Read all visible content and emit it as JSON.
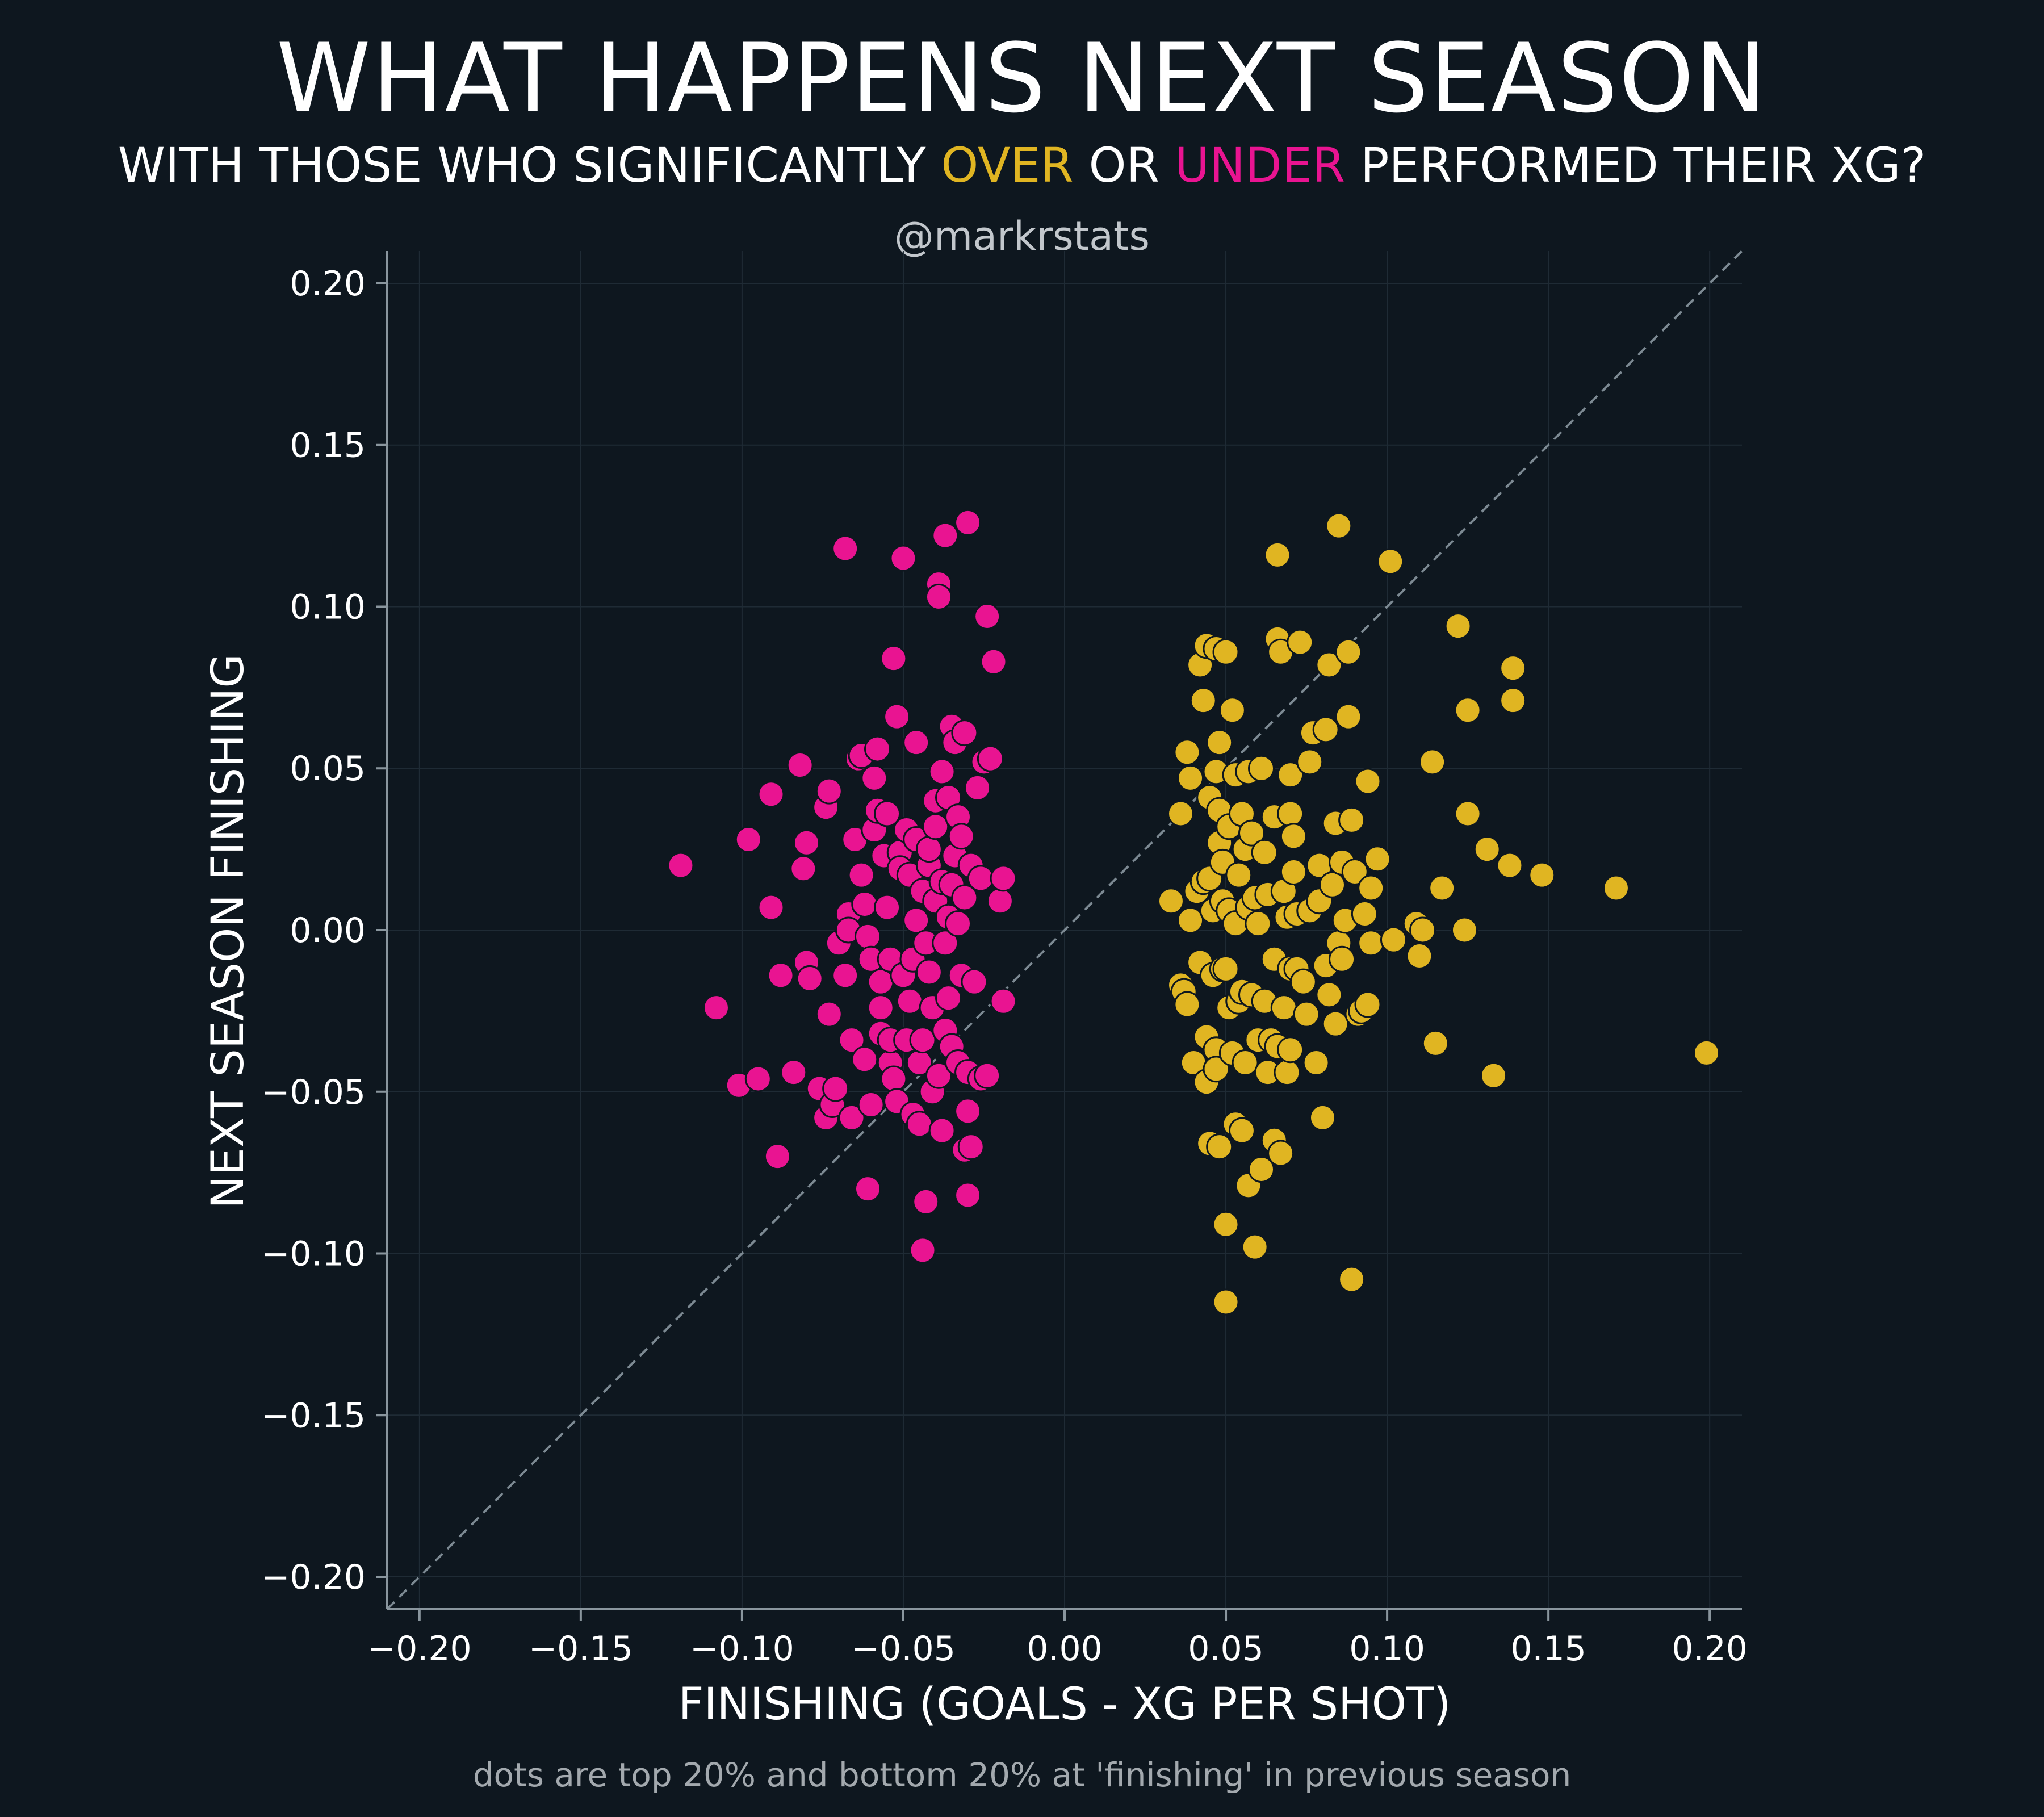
{
  "header": {
    "title": "WHAT HAPPENS NEXT SEASON",
    "subtitle_prefix": "WITH THOSE WHO SIGNIFICANTLY ",
    "subtitle_over": "OVER",
    "subtitle_mid": " OR ",
    "subtitle_under": "UNDER",
    "subtitle_suffix": " PERFORMED THEIR XG?",
    "handle": "@markrstats"
  },
  "footnote": "dots are top 20% and bottom 20% at 'finishing' in previous season",
  "colors": {
    "background": "#0e171f",
    "over": "#e0b522",
    "under": "#e91491",
    "grid": "#1f2b35",
    "axis": "#8a969e",
    "diagonal": "#7d8a93"
  },
  "chart_data": {
    "type": "scatter",
    "title": "WHAT HAPPENS NEXT SEASON",
    "xlabel": "FINISHING (GOALS - XG PER SHOT)",
    "ylabel": "NEXT SEASON FINISHING",
    "xlim": [
      -0.21,
      0.21
    ],
    "ylim": [
      -0.21,
      0.21
    ],
    "xticks": [
      -0.2,
      -0.15,
      -0.1,
      -0.05,
      0.0,
      0.05,
      0.1,
      0.15,
      0.2
    ],
    "yticks": [
      -0.2,
      -0.15,
      -0.1,
      -0.05,
      0.0,
      0.05,
      0.1,
      0.15,
      0.2
    ],
    "xtick_labels": [
      "−0.20",
      "−0.15",
      "−0.10",
      "−0.05",
      "0.00",
      "0.05",
      "0.10",
      "0.15",
      "0.20"
    ],
    "ytick_labels": [
      "−0.20",
      "−0.15",
      "−0.10",
      "−0.05",
      "0.00",
      "0.05",
      "0.10",
      "0.15",
      "0.20"
    ],
    "grid": true,
    "reference_line": "y = x (dashed)",
    "series": [
      {
        "name": "UNDER",
        "color": "#e91491",
        "points": [
          [
            -0.119,
            0.02
          ],
          [
            -0.108,
            -0.024
          ],
          [
            -0.101,
            -0.048
          ],
          [
            -0.098,
            0.028
          ],
          [
            -0.095,
            -0.046
          ],
          [
            -0.091,
            0.042
          ],
          [
            -0.091,
            0.007
          ],
          [
            -0.089,
            -0.07
          ],
          [
            -0.088,
            -0.014
          ],
          [
            -0.084,
            -0.044
          ],
          [
            -0.082,
            0.051
          ],
          [
            -0.081,
            0.019
          ],
          [
            -0.08,
            -0.01
          ],
          [
            -0.08,
            0.027
          ],
          [
            -0.079,
            -0.015
          ],
          [
            -0.076,
            -0.049
          ],
          [
            -0.074,
            -0.058
          ],
          [
            -0.074,
            0.038
          ],
          [
            -0.073,
            -0.026
          ],
          [
            -0.073,
            0.043
          ],
          [
            -0.072,
            -0.054
          ],
          [
            -0.071,
            -0.049
          ],
          [
            -0.07,
            -0.004
          ],
          [
            -0.068,
            0.118
          ],
          [
            -0.068,
            -0.014
          ],
          [
            -0.067,
            0.005
          ],
          [
            -0.067,
            0.0
          ],
          [
            -0.066,
            -0.058
          ],
          [
            -0.066,
            -0.034
          ],
          [
            -0.065,
            0.028
          ],
          [
            -0.064,
            0.053
          ],
          [
            -0.063,
            0.054
          ],
          [
            -0.063,
            0.017
          ],
          [
            -0.062,
            0.008
          ],
          [
            -0.062,
            -0.04
          ],
          [
            -0.061,
            -0.002
          ],
          [
            -0.061,
            -0.08
          ],
          [
            -0.06,
            -0.009
          ],
          [
            -0.06,
            -0.054
          ],
          [
            -0.059,
            0.031
          ],
          [
            -0.059,
            0.047
          ],
          [
            -0.058,
            0.037
          ],
          [
            -0.058,
            0.056
          ],
          [
            -0.057,
            -0.024
          ],
          [
            -0.057,
            -0.032
          ],
          [
            -0.057,
            -0.016
          ],
          [
            -0.056,
            0.023
          ],
          [
            -0.055,
            0.007
          ],
          [
            -0.055,
            0.036
          ],
          [
            -0.054,
            -0.041
          ],
          [
            -0.054,
            -0.034
          ],
          [
            -0.054,
            -0.009
          ],
          [
            -0.053,
            0.084
          ],
          [
            -0.053,
            -0.046
          ],
          [
            -0.052,
            0.066
          ],
          [
            -0.052,
            -0.053
          ],
          [
            -0.051,
            0.024
          ],
          [
            -0.051,
            0.019
          ],
          [
            -0.05,
            0.115
          ],
          [
            -0.05,
            -0.014
          ],
          [
            -0.049,
            0.031
          ],
          [
            -0.049,
            -0.034
          ],
          [
            -0.048,
            0.017
          ],
          [
            -0.048,
            -0.022
          ],
          [
            -0.047,
            -0.057
          ],
          [
            -0.047,
            -0.009
          ],
          [
            -0.046,
            0.003
          ],
          [
            -0.046,
            0.058
          ],
          [
            -0.046,
            0.028
          ],
          [
            -0.045,
            -0.041
          ],
          [
            -0.045,
            -0.06
          ],
          [
            -0.044,
            -0.099
          ],
          [
            -0.044,
            -0.034
          ],
          [
            -0.044,
            0.012
          ],
          [
            -0.043,
            -0.084
          ],
          [
            -0.043,
            -0.004
          ],
          [
            -0.042,
            0.02
          ],
          [
            -0.042,
            -0.013
          ],
          [
            -0.042,
            0.025
          ],
          [
            -0.041,
            -0.05
          ],
          [
            -0.041,
            -0.024
          ],
          [
            -0.04,
            0.04
          ],
          [
            -0.04,
            0.032
          ],
          [
            -0.04,
            0.009
          ],
          [
            -0.039,
            -0.045
          ],
          [
            -0.039,
            0.107
          ],
          [
            -0.039,
            0.103
          ],
          [
            -0.038,
            0.049
          ],
          [
            -0.038,
            -0.062
          ],
          [
            -0.038,
            0.015
          ],
          [
            -0.037,
            -0.004
          ],
          [
            -0.037,
            -0.031
          ],
          [
            -0.037,
            0.122
          ],
          [
            -0.036,
            0.041
          ],
          [
            -0.036,
            -0.021
          ],
          [
            -0.036,
            0.004
          ],
          [
            -0.035,
            0.063
          ],
          [
            -0.035,
            -0.036
          ],
          [
            -0.035,
            0.014
          ],
          [
            -0.034,
            0.058
          ],
          [
            -0.034,
            0.023
          ],
          [
            -0.033,
            -0.041
          ],
          [
            -0.033,
            0.035
          ],
          [
            -0.033,
            0.002
          ],
          [
            -0.032,
            -0.014
          ],
          [
            -0.032,
            0.029
          ],
          [
            -0.031,
            -0.068
          ],
          [
            -0.031,
            0.061
          ],
          [
            -0.031,
            0.01
          ],
          [
            -0.03,
            0.126
          ],
          [
            -0.03,
            -0.082
          ],
          [
            -0.03,
            -0.056
          ],
          [
            -0.03,
            -0.044
          ],
          [
            -0.029,
            0.02
          ],
          [
            -0.029,
            -0.067
          ],
          [
            -0.028,
            -0.016
          ],
          [
            -0.027,
            0.044
          ],
          [
            -0.026,
            0.016
          ],
          [
            -0.026,
            -0.046
          ],
          [
            -0.025,
            0.052
          ],
          [
            -0.024,
            0.097
          ],
          [
            -0.024,
            -0.045
          ],
          [
            -0.023,
            0.053
          ],
          [
            -0.022,
            0.083
          ],
          [
            -0.02,
            0.009
          ],
          [
            -0.019,
            -0.022
          ],
          [
            -0.019,
            0.016
          ]
        ]
      },
      {
        "name": "OVER",
        "color": "#e0b522",
        "points": [
          [
            0.033,
            0.009
          ],
          [
            0.036,
            0.036
          ],
          [
            0.036,
            -0.017
          ],
          [
            0.037,
            -0.019
          ],
          [
            0.038,
            0.055
          ],
          [
            0.038,
            -0.023
          ],
          [
            0.039,
            0.003
          ],
          [
            0.039,
            0.047
          ],
          [
            0.04,
            -0.041
          ],
          [
            0.041,
            0.012
          ],
          [
            0.042,
            0.082
          ],
          [
            0.042,
            -0.01
          ],
          [
            0.043,
            0.015
          ],
          [
            0.043,
            0.071
          ],
          [
            0.044,
            0.088
          ],
          [
            0.044,
            -0.047
          ],
          [
            0.044,
            -0.033
          ],
          [
            0.045,
            -0.066
          ],
          [
            0.045,
            0.016
          ],
          [
            0.045,
            0.041
          ],
          [
            0.046,
            -0.014
          ],
          [
            0.046,
            0.006
          ],
          [
            0.047,
            0.049
          ],
          [
            0.047,
            -0.037
          ],
          [
            0.047,
            -0.043
          ],
          [
            0.047,
            0.087
          ],
          [
            0.048,
            0.027
          ],
          [
            0.048,
            0.037
          ],
          [
            0.048,
            -0.067
          ],
          [
            0.048,
            0.058
          ],
          [
            0.049,
            -0.012
          ],
          [
            0.049,
            0.021
          ],
          [
            0.049,
            0.009
          ],
          [
            0.05,
            -0.091
          ],
          [
            0.05,
            -0.115
          ],
          [
            0.05,
            -0.012
          ],
          [
            0.05,
            0.086
          ],
          [
            0.051,
            0.032
          ],
          [
            0.051,
            -0.024
          ],
          [
            0.051,
            0.006
          ],
          [
            0.052,
            0.068
          ],
          [
            0.052,
            -0.038
          ],
          [
            0.053,
            -0.06
          ],
          [
            0.053,
            0.048
          ],
          [
            0.053,
            0.002
          ],
          [
            0.054,
            -0.022
          ],
          [
            0.054,
            0.017
          ],
          [
            0.055,
            0.036
          ],
          [
            0.055,
            -0.062
          ],
          [
            0.055,
            -0.019
          ],
          [
            0.056,
            0.025
          ],
          [
            0.056,
            -0.041
          ],
          [
            0.057,
            -0.079
          ],
          [
            0.057,
            0.049
          ],
          [
            0.057,
            0.007
          ],
          [
            0.058,
            -0.02
          ],
          [
            0.058,
            0.03
          ],
          [
            0.059,
            -0.098
          ],
          [
            0.059,
            0.01
          ],
          [
            0.06,
            0.002
          ],
          [
            0.06,
            -0.034
          ],
          [
            0.061,
            -0.074
          ],
          [
            0.061,
            0.05
          ],
          [
            0.062,
            -0.022
          ],
          [
            0.062,
            0.024
          ],
          [
            0.063,
            -0.044
          ],
          [
            0.063,
            0.011
          ],
          [
            0.064,
            -0.034
          ],
          [
            0.065,
            -0.065
          ],
          [
            0.065,
            0.035
          ],
          [
            0.065,
            -0.009
          ],
          [
            0.066,
            0.116
          ],
          [
            0.066,
            0.09
          ],
          [
            0.066,
            -0.036
          ],
          [
            0.067,
            0.086
          ],
          [
            0.067,
            -0.069
          ],
          [
            0.068,
            0.012
          ],
          [
            0.068,
            -0.024
          ],
          [
            0.069,
            0.004
          ],
          [
            0.069,
            -0.044
          ],
          [
            0.07,
            -0.037
          ],
          [
            0.07,
            0.036
          ],
          [
            0.07,
            -0.012
          ],
          [
            0.07,
            0.048
          ],
          [
            0.071,
            0.018
          ],
          [
            0.071,
            0.029
          ],
          [
            0.072,
            0.005
          ],
          [
            0.072,
            -0.012
          ],
          [
            0.073,
            0.089
          ],
          [
            0.074,
            -0.016
          ],
          [
            0.075,
            -0.026
          ],
          [
            0.076,
            0.006
          ],
          [
            0.076,
            0.052
          ],
          [
            0.077,
            0.061
          ],
          [
            0.078,
            -0.041
          ],
          [
            0.079,
            0.02
          ],
          [
            0.079,
            0.009
          ],
          [
            0.08,
            -0.058
          ],
          [
            0.081,
            0.062
          ],
          [
            0.081,
            -0.011
          ],
          [
            0.082,
            0.082
          ],
          [
            0.082,
            -0.02
          ],
          [
            0.083,
            0.014
          ],
          [
            0.084,
            -0.029
          ],
          [
            0.084,
            0.033
          ],
          [
            0.085,
            0.125
          ],
          [
            0.085,
            -0.004
          ],
          [
            0.086,
            -0.009
          ],
          [
            0.086,
            0.021
          ],
          [
            0.087,
            0.003
          ],
          [
            0.088,
            0.086
          ],
          [
            0.088,
            0.066
          ],
          [
            0.089,
            0.034
          ],
          [
            0.089,
            -0.108
          ],
          [
            0.09,
            0.018
          ],
          [
            0.091,
            -0.026
          ],
          [
            0.092,
            -0.025
          ],
          [
            0.093,
            0.005
          ],
          [
            0.094,
            0.046
          ],
          [
            0.094,
            -0.023
          ],
          [
            0.095,
            0.013
          ],
          [
            0.095,
            -0.004
          ],
          [
            0.097,
            0.022
          ],
          [
            0.101,
            0.114
          ],
          [
            0.102,
            -0.003
          ],
          [
            0.109,
            0.002
          ],
          [
            0.11,
            -0.008
          ],
          [
            0.111,
            0.0
          ],
          [
            0.114,
            0.052
          ],
          [
            0.115,
            -0.035
          ],
          [
            0.117,
            0.013
          ],
          [
            0.122,
            0.094
          ],
          [
            0.124,
            0.0
          ],
          [
            0.125,
            0.068
          ],
          [
            0.125,
            0.036
          ],
          [
            0.131,
            0.025
          ],
          [
            0.133,
            -0.045
          ],
          [
            0.138,
            0.02
          ],
          [
            0.139,
            0.071
          ],
          [
            0.139,
            0.081
          ],
          [
            0.148,
            0.017
          ],
          [
            0.171,
            0.013
          ],
          [
            0.199,
            -0.038
          ]
        ]
      }
    ]
  }
}
